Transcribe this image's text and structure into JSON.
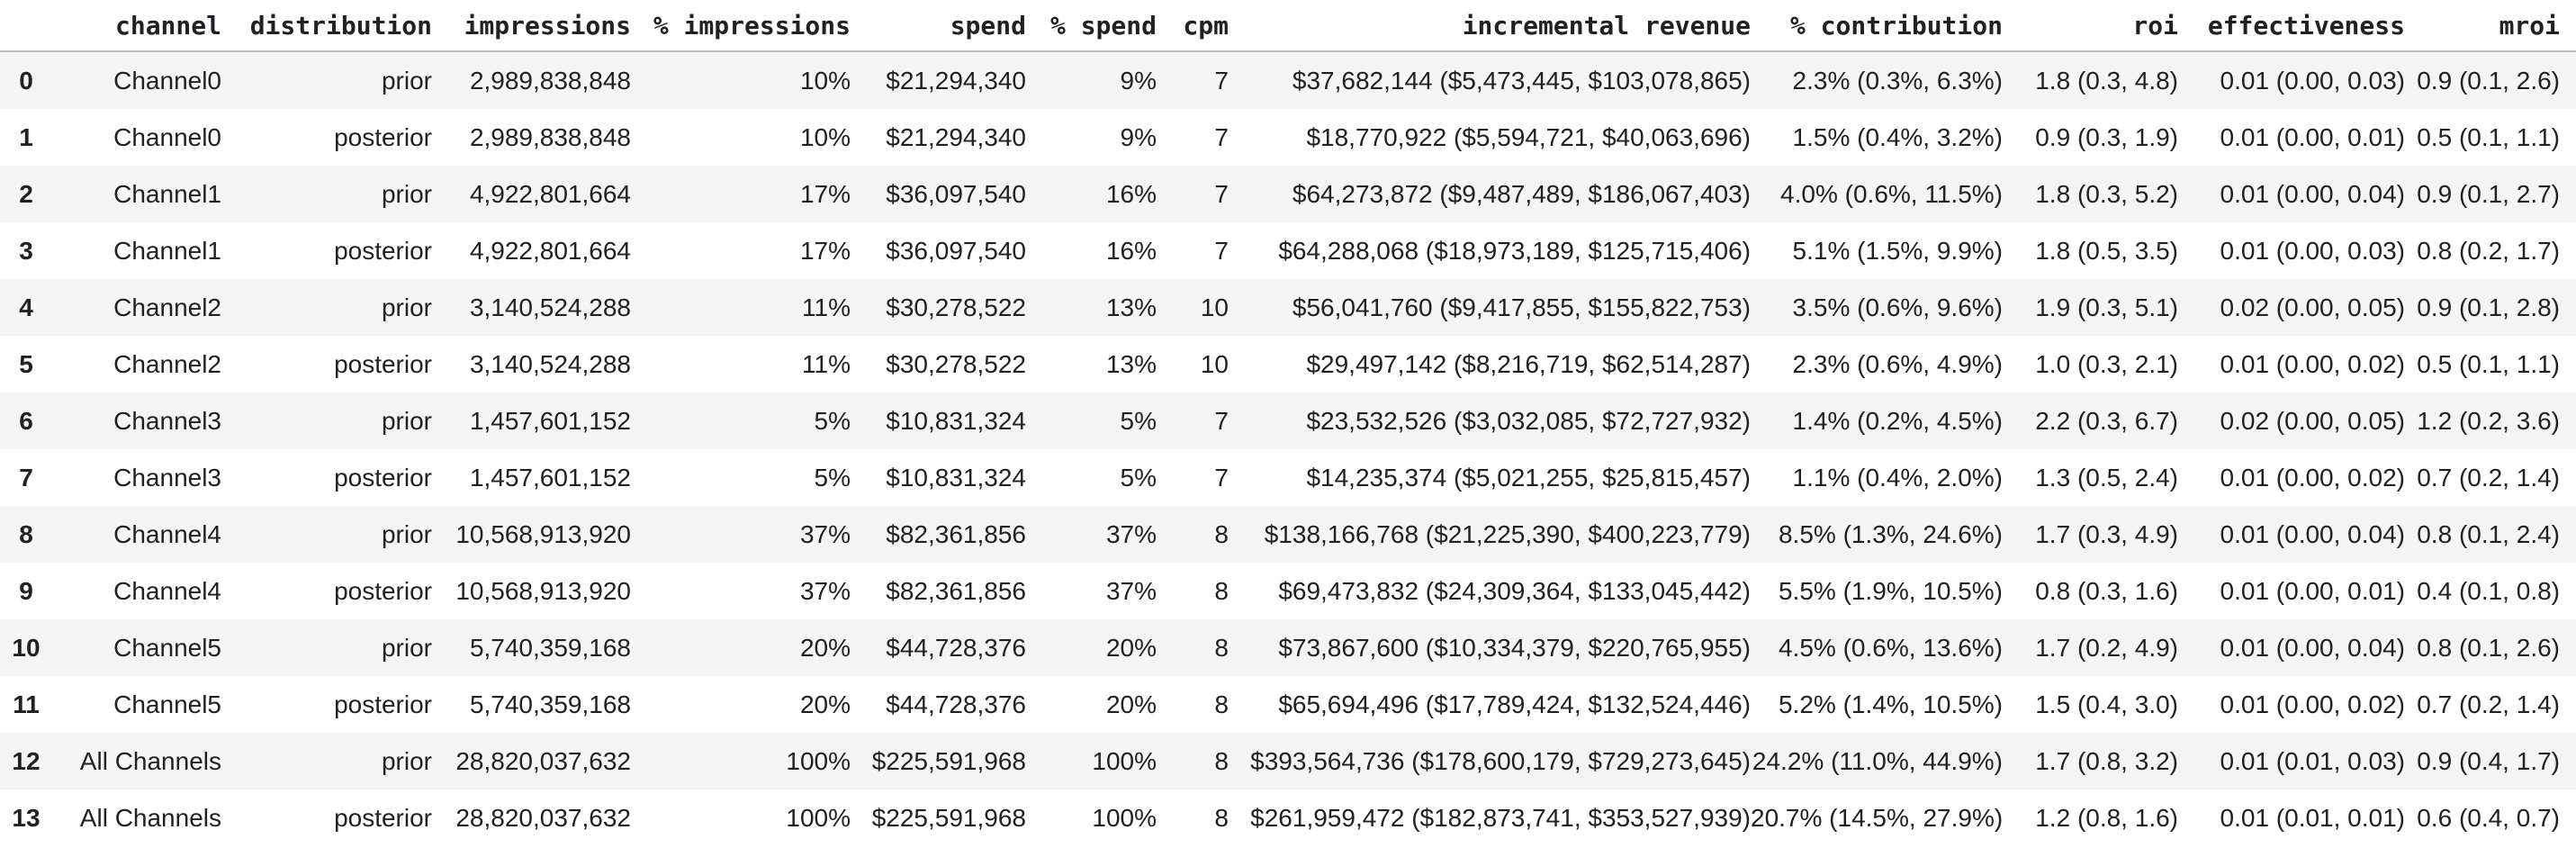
{
  "colors": {
    "text": "#202124",
    "row_stripe": "#f5f5f5",
    "header_border": "#bdbdbd",
    "background": "#ffffff"
  },
  "chart_data": {
    "type": "table",
    "columns": [
      "",
      "channel",
      "distribution",
      "impressions",
      "% impressions",
      "spend",
      "% spend",
      "cpm",
      "incremental revenue",
      "% contribution",
      "roi",
      "effectiveness",
      "mroi"
    ],
    "rows": [
      [
        "0",
        "Channel0",
        "prior",
        "2,989,838,848",
        "10%",
        "$21,294,340",
        "9%",
        "7",
        "$37,682,144 ($5,473,445, $103,078,865)",
        "2.3% (0.3%, 6.3%)",
        "1.8 (0.3, 4.8)",
        "0.01 (0.00, 0.03)",
        "0.9 (0.1, 2.6)"
      ],
      [
        "1",
        "Channel0",
        "posterior",
        "2,989,838,848",
        "10%",
        "$21,294,340",
        "9%",
        "7",
        "$18,770,922 ($5,594,721, $40,063,696)",
        "1.5% (0.4%, 3.2%)",
        "0.9 (0.3, 1.9)",
        "0.01 (0.00, 0.01)",
        "0.5 (0.1, 1.1)"
      ],
      [
        "2",
        "Channel1",
        "prior",
        "4,922,801,664",
        "17%",
        "$36,097,540",
        "16%",
        "7",
        "$64,273,872 ($9,487,489, $186,067,403)",
        "4.0% (0.6%, 11.5%)",
        "1.8 (0.3, 5.2)",
        "0.01 (0.00, 0.04)",
        "0.9 (0.1, 2.7)"
      ],
      [
        "3",
        "Channel1",
        "posterior",
        "4,922,801,664",
        "17%",
        "$36,097,540",
        "16%",
        "7",
        "$64,288,068 ($18,973,189, $125,715,406)",
        "5.1% (1.5%, 9.9%)",
        "1.8 (0.5, 3.5)",
        "0.01 (0.00, 0.03)",
        "0.8 (0.2, 1.7)"
      ],
      [
        "4",
        "Channel2",
        "prior",
        "3,140,524,288",
        "11%",
        "$30,278,522",
        "13%",
        "10",
        "$56,041,760 ($9,417,855, $155,822,753)",
        "3.5% (0.6%, 9.6%)",
        "1.9 (0.3, 5.1)",
        "0.02 (0.00, 0.05)",
        "0.9 (0.1, 2.8)"
      ],
      [
        "5",
        "Channel2",
        "posterior",
        "3,140,524,288",
        "11%",
        "$30,278,522",
        "13%",
        "10",
        "$29,497,142 ($8,216,719, $62,514,287)",
        "2.3% (0.6%, 4.9%)",
        "1.0 (0.3, 2.1)",
        "0.01 (0.00, 0.02)",
        "0.5 (0.1, 1.1)"
      ],
      [
        "6",
        "Channel3",
        "prior",
        "1,457,601,152",
        "5%",
        "$10,831,324",
        "5%",
        "7",
        "$23,532,526 ($3,032,085, $72,727,932)",
        "1.4% (0.2%, 4.5%)",
        "2.2 (0.3, 6.7)",
        "0.02 (0.00, 0.05)",
        "1.2 (0.2, 3.6)"
      ],
      [
        "7",
        "Channel3",
        "posterior",
        "1,457,601,152",
        "5%",
        "$10,831,324",
        "5%",
        "7",
        "$14,235,374 ($5,021,255, $25,815,457)",
        "1.1% (0.4%, 2.0%)",
        "1.3 (0.5, 2.4)",
        "0.01 (0.00, 0.02)",
        "0.7 (0.2, 1.4)"
      ],
      [
        "8",
        "Channel4",
        "prior",
        "10,568,913,920",
        "37%",
        "$82,361,856",
        "37%",
        "8",
        "$138,166,768 ($21,225,390, $400,223,779)",
        "8.5% (1.3%, 24.6%)",
        "1.7 (0.3, 4.9)",
        "0.01 (0.00, 0.04)",
        "0.8 (0.1, 2.4)"
      ],
      [
        "9",
        "Channel4",
        "posterior",
        "10,568,913,920",
        "37%",
        "$82,361,856",
        "37%",
        "8",
        "$69,473,832 ($24,309,364, $133,045,442)",
        "5.5% (1.9%, 10.5%)",
        "0.8 (0.3, 1.6)",
        "0.01 (0.00, 0.01)",
        "0.4 (0.1, 0.8)"
      ],
      [
        "10",
        "Channel5",
        "prior",
        "5,740,359,168",
        "20%",
        "$44,728,376",
        "20%",
        "8",
        "$73,867,600 ($10,334,379, $220,765,955)",
        "4.5% (0.6%, 13.6%)",
        "1.7 (0.2, 4.9)",
        "0.01 (0.00, 0.04)",
        "0.8 (0.1, 2.6)"
      ],
      [
        "11",
        "Channel5",
        "posterior",
        "5,740,359,168",
        "20%",
        "$44,728,376",
        "20%",
        "8",
        "$65,694,496 ($17,789,424, $132,524,446)",
        "5.2% (1.4%, 10.5%)",
        "1.5 (0.4, 3.0)",
        "0.01 (0.00, 0.02)",
        "0.7 (0.2, 1.4)"
      ],
      [
        "12",
        "All Channels",
        "prior",
        "28,820,037,632",
        "100%",
        "$225,591,968",
        "100%",
        "8",
        "$393,564,736 ($178,600,179, $729,273,645)",
        "24.2% (11.0%, 44.9%)",
        "1.7 (0.8, 3.2)",
        "0.01 (0.01, 0.03)",
        "0.9 (0.4, 1.7)"
      ],
      [
        "13",
        "All Channels",
        "posterior",
        "28,820,037,632",
        "100%",
        "$225,591,968",
        "100%",
        "8",
        "$261,959,472 ($182,873,741, $353,527,939)",
        "20.7% (14.5%, 27.9%)",
        "1.2 (0.8, 1.6)",
        "0.01 (0.01, 0.01)",
        "0.6 (0.4, 0.7)"
      ]
    ],
    "title": "",
    "legend": false,
    "grid": "row-stripes"
  }
}
